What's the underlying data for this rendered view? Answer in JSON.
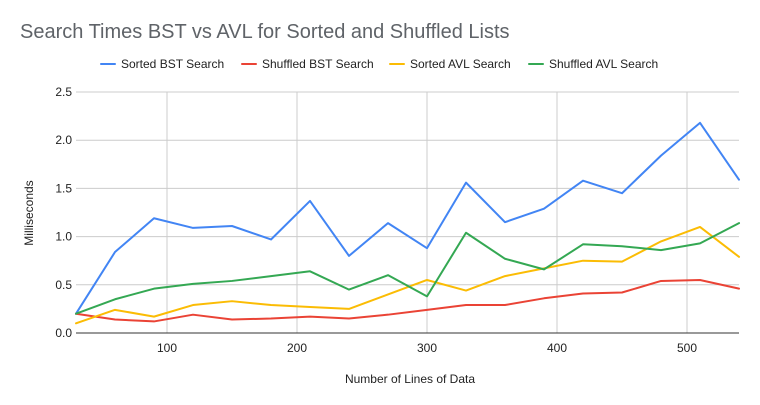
{
  "chart_data": {
    "type": "line",
    "title": "Search Times BST vs AVL for Sorted and Shuffled Lists",
    "xlabel": "Number of Lines of Data",
    "ylabel": "Milliseconds",
    "xlim": [
      30,
      540
    ],
    "ylim": [
      0,
      2.5
    ],
    "x_ticks": [
      100,
      200,
      300,
      400,
      500
    ],
    "y_ticks": [
      0.0,
      0.5,
      1.0,
      1.5,
      2.0,
      2.5
    ],
    "y_tick_labels": [
      "0.0",
      "0.5",
      "1.0",
      "1.5",
      "2.0",
      "2.5"
    ],
    "grid": true,
    "legend_position": "top",
    "x": [
      30,
      60,
      90,
      120,
      150,
      180,
      210,
      240,
      270,
      300,
      330,
      360,
      390,
      420,
      450,
      480,
      510,
      540
    ],
    "series": [
      {
        "name": "Sorted BST Search",
        "color": "#4285f4",
        "values": [
          0.2,
          0.84,
          1.19,
          1.09,
          1.11,
          0.97,
          1.37,
          0.8,
          1.14,
          0.88,
          1.56,
          1.15,
          1.29,
          1.58,
          1.45,
          1.84,
          2.18,
          1.59
        ]
      },
      {
        "name": "Shuffled BST Search",
        "color": "#ea4335",
        "values": [
          0.2,
          0.14,
          0.12,
          0.19,
          0.14,
          0.15,
          0.17,
          0.15,
          0.19,
          0.24,
          0.29,
          0.29,
          0.36,
          0.41,
          0.42,
          0.54,
          0.55,
          0.46
        ]
      },
      {
        "name": "Sorted AVL Search",
        "color": "#fbbc04",
        "values": [
          0.1,
          0.24,
          0.17,
          0.29,
          0.33,
          0.29,
          0.27,
          0.25,
          0.4,
          0.55,
          0.44,
          0.59,
          0.67,
          0.75,
          0.74,
          0.95,
          1.1,
          0.79
        ]
      },
      {
        "name": "Shuffled AVL Search",
        "color": "#34a853",
        "values": [
          0.2,
          0.35,
          0.46,
          0.51,
          0.54,
          0.59,
          0.64,
          0.45,
          0.6,
          0.38,
          1.04,
          0.77,
          0.66,
          0.92,
          0.9,
          0.86,
          0.93,
          1.14
        ]
      }
    ]
  }
}
